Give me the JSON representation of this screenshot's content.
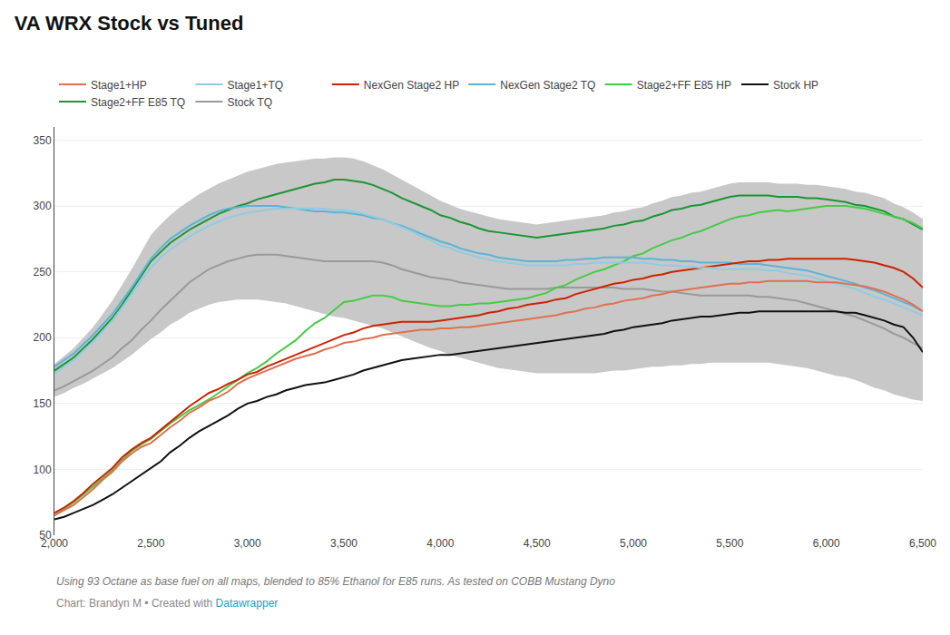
{
  "chart_data": {
    "type": "line",
    "title": "VA WRX Stock vs Tuned",
    "subtitle": "Using 93 Octane as base fuel on all maps, blended to 85% Ethanol for E85 runs. As tested on COBB Mustang Dyno",
    "annotations": [
      {
        "text": "Chart: Brandyn M • Created with "
      },
      {
        "text": "Datawrapper",
        "color": "#18a0c8"
      }
    ],
    "xlim": [
      2000,
      6500
    ],
    "ylim": [
      50,
      360
    ],
    "yticks": [
      50,
      100,
      150,
      200,
      250,
      300,
      350
    ],
    "xticks": [
      {
        "value": 2000,
        "label": "2,000"
      },
      {
        "value": 2500,
        "label": "2,500"
      },
      {
        "value": 3000,
        "label": "3,000"
      },
      {
        "value": 3500,
        "label": "3,500"
      },
      {
        "value": 4000,
        "label": "4,000"
      },
      {
        "value": 4500,
        "label": "4,500"
      },
      {
        "value": 5000,
        "label": "5,000"
      },
      {
        "value": 5500,
        "label": "5,500"
      },
      {
        "value": 6000,
        "label": "6,000"
      },
      {
        "value": 6500,
        "label": "6,500"
      }
    ],
    "grid": "y",
    "x": [
      2000,
      2050,
      2100,
      2150,
      2200,
      2250,
      2300,
      2350,
      2400,
      2450,
      2500,
      2550,
      2600,
      2650,
      2700,
      2750,
      2800,
      2850,
      2900,
      2950,
      3000,
      3050,
      3100,
      3150,
      3200,
      3250,
      3300,
      3350,
      3400,
      3450,
      3500,
      3550,
      3600,
      3650,
      3700,
      3750,
      3800,
      3850,
      3900,
      3950,
      4000,
      4050,
      4100,
      4150,
      4200,
      4250,
      4300,
      4350,
      4400,
      4450,
      4500,
      4550,
      4600,
      4650,
      4700,
      4750,
      4800,
      4850,
      4900,
      4950,
      5000,
      5050,
      5100,
      5150,
      5200,
      5250,
      5300,
      5350,
      5400,
      5450,
      5500,
      5550,
      5600,
      5650,
      5700,
      5750,
      5800,
      5850,
      5900,
      5950,
      6000,
      6050,
      6100,
      6150,
      6200,
      6250,
      6300,
      6350,
      6400,
      6450,
      6500
    ],
    "series": [
      {
        "type": "band",
        "color": "#c8c8c8",
        "lower": [
          155,
          158,
          162,
          165,
          169,
          173,
          177,
          182,
          187,
          193,
          199,
          204,
          210,
          214,
          219,
          222,
          225,
          227,
          228,
          229,
          229,
          229,
          228,
          227,
          226,
          224,
          222,
          220,
          218,
          216,
          215,
          213,
          211,
          209,
          207,
          204,
          201,
          198,
          195,
          192,
          190,
          187,
          185,
          183,
          181,
          179,
          177,
          176,
          175,
          174,
          173,
          173,
          173,
          173,
          173,
          173,
          173,
          174,
          175,
          175,
          176,
          177,
          178,
          178,
          179,
          179,
          180,
          180,
          181,
          181,
          181,
          181,
          181,
          181,
          181,
          180,
          179,
          178,
          177,
          175,
          173,
          171,
          170,
          168,
          165,
          162,
          160,
          157,
          155,
          153,
          152
        ],
        "upper": [
          180,
          186,
          192,
          200,
          208,
          218,
          228,
          240,
          252,
          265,
          278,
          286,
          293,
          299,
          304,
          309,
          313,
          317,
          320,
          323,
          326,
          328,
          330,
          332,
          333,
          334,
          335,
          336,
          336,
          337,
          337,
          336,
          334,
          331,
          328,
          324,
          320,
          316,
          312,
          308,
          304,
          301,
          298,
          296,
          294,
          292,
          290,
          289,
          288,
          287,
          286,
          287,
          288,
          289,
          290,
          291,
          292,
          293,
          295,
          296,
          298,
          299,
          302,
          304,
          307,
          308,
          310,
          311,
          313,
          315,
          317,
          318,
          318,
          318,
          318,
          317,
          317,
          317,
          316,
          316,
          315,
          314,
          313,
          311,
          310,
          308,
          306,
          302,
          299,
          295,
          290
        ]
      },
      {
        "name": "Stock TQ",
        "color": "#999999",
        "values": [
          160,
          163,
          167,
          171,
          175,
          180,
          185,
          192,
          198,
          206,
          213,
          221,
          228,
          235,
          242,
          247,
          252,
          255,
          258,
          260,
          262,
          263,
          263,
          263,
          262,
          261,
          260,
          259,
          258,
          258,
          258,
          258,
          258,
          258,
          257,
          255,
          252,
          250,
          248,
          246,
          245,
          244,
          242,
          241,
          240,
          239,
          238,
          237,
          237,
          237,
          237,
          237,
          238,
          238,
          238,
          238,
          238,
          238,
          238,
          237,
          237,
          237,
          236,
          235,
          235,
          234,
          233,
          232,
          232,
          232,
          232,
          232,
          232,
          231,
          231,
          230,
          229,
          228,
          226,
          224,
          222,
          220,
          218,
          216,
          213,
          210,
          207,
          203,
          200,
          196,
          192
        ]
      },
      {
        "name": "Stage2+FF E85 TQ",
        "color": "#1a9632",
        "values": [
          175,
          180,
          185,
          192,
          199,
          207,
          215,
          225,
          236,
          247,
          258,
          265,
          272,
          277,
          282,
          286,
          290,
          294,
          297,
          300,
          302,
          305,
          307,
          309,
          311,
          313,
          315,
          317,
          318,
          320,
          320,
          319,
          318,
          316,
          313,
          310,
          306,
          303,
          300,
          297,
          293,
          291,
          288,
          286,
          283,
          281,
          280,
          279,
          278,
          277,
          276,
          277,
          278,
          279,
          280,
          281,
          282,
          283,
          285,
          286,
          288,
          289,
          292,
          294,
          297,
          298,
          300,
          301,
          303,
          305,
          307,
          308,
          308,
          308,
          308,
          307,
          307,
          307,
          306,
          306,
          305,
          304,
          303,
          301,
          300,
          298,
          296,
          292,
          290,
          286,
          282
        ]
      },
      {
        "name": "Stock HP",
        "color": "#111111",
        "values": [
          62,
          64,
          67,
          70,
          73,
          77,
          81,
          86,
          91,
          96,
          101,
          106,
          113,
          118,
          124,
          129,
          133,
          137,
          141,
          146,
          150,
          152,
          155,
          157,
          160,
          162,
          164,
          165,
          166,
          168,
          170,
          172,
          175,
          177,
          179,
          181,
          183,
          184,
          185,
          186,
          187,
          187,
          188,
          189,
          190,
          191,
          192,
          193,
          194,
          195,
          196,
          197,
          198,
          199,
          200,
          201,
          202,
          203,
          205,
          206,
          208,
          209,
          210,
          211,
          213,
          214,
          215,
          216,
          216,
          217,
          218,
          219,
          219,
          220,
          220,
          220,
          220,
          220,
          220,
          220,
          220,
          220,
          219,
          219,
          217,
          215,
          213,
          210,
          208,
          200,
          189
        ]
      },
      {
        "name": "Stage2+FF E85 HP",
        "color": "#44cc44",
        "values": [
          65,
          70,
          75,
          81,
          87,
          93,
          99,
          107,
          114,
          119,
          123,
          129,
          135,
          140,
          145,
          149,
          153,
          158,
          163,
          168,
          173,
          177,
          182,
          188,
          193,
          198,
          205,
          211,
          215,
          221,
          227,
          228,
          230,
          232,
          232,
          231,
          228,
          227,
          226,
          225,
          224,
          224,
          225,
          225,
          226,
          226,
          227,
          228,
          229,
          230,
          232,
          234,
          238,
          240,
          244,
          247,
          250,
          252,
          255,
          258,
          262,
          264,
          268,
          271,
          274,
          276,
          279,
          281,
          284,
          287,
          290,
          292,
          293,
          295,
          296,
          297,
          296,
          297,
          298,
          299,
          300,
          300,
          300,
          299,
          298,
          296,
          294,
          292,
          290,
          287,
          283
        ]
      },
      {
        "name": "NexGen Stage2 TQ",
        "color": "#5ab4d6",
        "values": [
          178,
          183,
          188,
          195,
          202,
          210,
          218,
          228,
          238,
          249,
          260,
          268,
          275,
          280,
          285,
          289,
          293,
          296,
          298,
          299,
          300,
          300,
          300,
          300,
          299,
          298,
          297,
          296,
          296,
          295,
          295,
          294,
          293,
          291,
          290,
          287,
          285,
          282,
          279,
          276,
          273,
          271,
          268,
          266,
          264,
          263,
          261,
          260,
          259,
          258,
          258,
          258,
          258,
          259,
          259,
          260,
          260,
          261,
          261,
          261,
          261,
          260,
          260,
          259,
          259,
          258,
          258,
          257,
          257,
          257,
          257,
          256,
          256,
          256,
          255,
          254,
          253,
          252,
          251,
          249,
          247,
          245,
          243,
          241,
          238,
          236,
          233,
          230,
          227,
          224,
          220
        ]
      },
      {
        "name": "NexGen Stage2 HP",
        "color": "#cc2200",
        "values": [
          67,
          71,
          76,
          82,
          89,
          95,
          101,
          109,
          115,
          120,
          124,
          130,
          136,
          142,
          148,
          153,
          158,
          161,
          165,
          168,
          172,
          174,
          178,
          181,
          184,
          187,
          190,
          193,
          196,
          199,
          202,
          204,
          207,
          209,
          210,
          211,
          212,
          212,
          212,
          212,
          213,
          214,
          215,
          216,
          217,
          219,
          220,
          222,
          223,
          225,
          226,
          227,
          229,
          230,
          233,
          235,
          237,
          239,
          241,
          242,
          244,
          245,
          247,
          248,
          250,
          251,
          252,
          253,
          254,
          255,
          256,
          257,
          258,
          258,
          259,
          259,
          260,
          260,
          260,
          260,
          260,
          260,
          260,
          259,
          258,
          257,
          255,
          253,
          250,
          245,
          238
        ]
      },
      {
        "name": "Stage1+TQ",
        "color": "#90cce0",
        "values": [
          173,
          178,
          183,
          190,
          197,
          205,
          213,
          223,
          233,
          244,
          253,
          261,
          267,
          272,
          277,
          281,
          285,
          288,
          291,
          293,
          295,
          296,
          297,
          298,
          298,
          298,
          298,
          298,
          298,
          297,
          297,
          296,
          294,
          292,
          290,
          287,
          284,
          281,
          277,
          274,
          270,
          268,
          265,
          263,
          261,
          259,
          258,
          257,
          256,
          255,
          255,
          255,
          255,
          255,
          256,
          256,
          257,
          257,
          257,
          257,
          257,
          257,
          256,
          255,
          255,
          254,
          254,
          253,
          253,
          252,
          252,
          252,
          252,
          252,
          251,
          251,
          249,
          248,
          247,
          245,
          243,
          241,
          239,
          237,
          234,
          231,
          229,
          226,
          223,
          220,
          217
        ]
      },
      {
        "name": "Stage1+HP",
        "color": "#e07050",
        "values": [
          65,
          69,
          73,
          79,
          85,
          92,
          98,
          106,
          112,
          117,
          120,
          126,
          132,
          137,
          143,
          147,
          152,
          155,
          159,
          165,
          169,
          172,
          175,
          178,
          181,
          184,
          186,
          188,
          191,
          193,
          196,
          197,
          199,
          200,
          202,
          203,
          204,
          205,
          206,
          206,
          207,
          207,
          208,
          208,
          209,
          210,
          211,
          212,
          213,
          214,
          215,
          216,
          217,
          219,
          220,
          222,
          223,
          225,
          226,
          228,
          229,
          230,
          232,
          233,
          235,
          236,
          237,
          238,
          239,
          240,
          241,
          241,
          242,
          242,
          243,
          243,
          243,
          243,
          243,
          242,
          242,
          242,
          241,
          240,
          239,
          237,
          235,
          232,
          229,
          225,
          220
        ]
      }
    ]
  }
}
